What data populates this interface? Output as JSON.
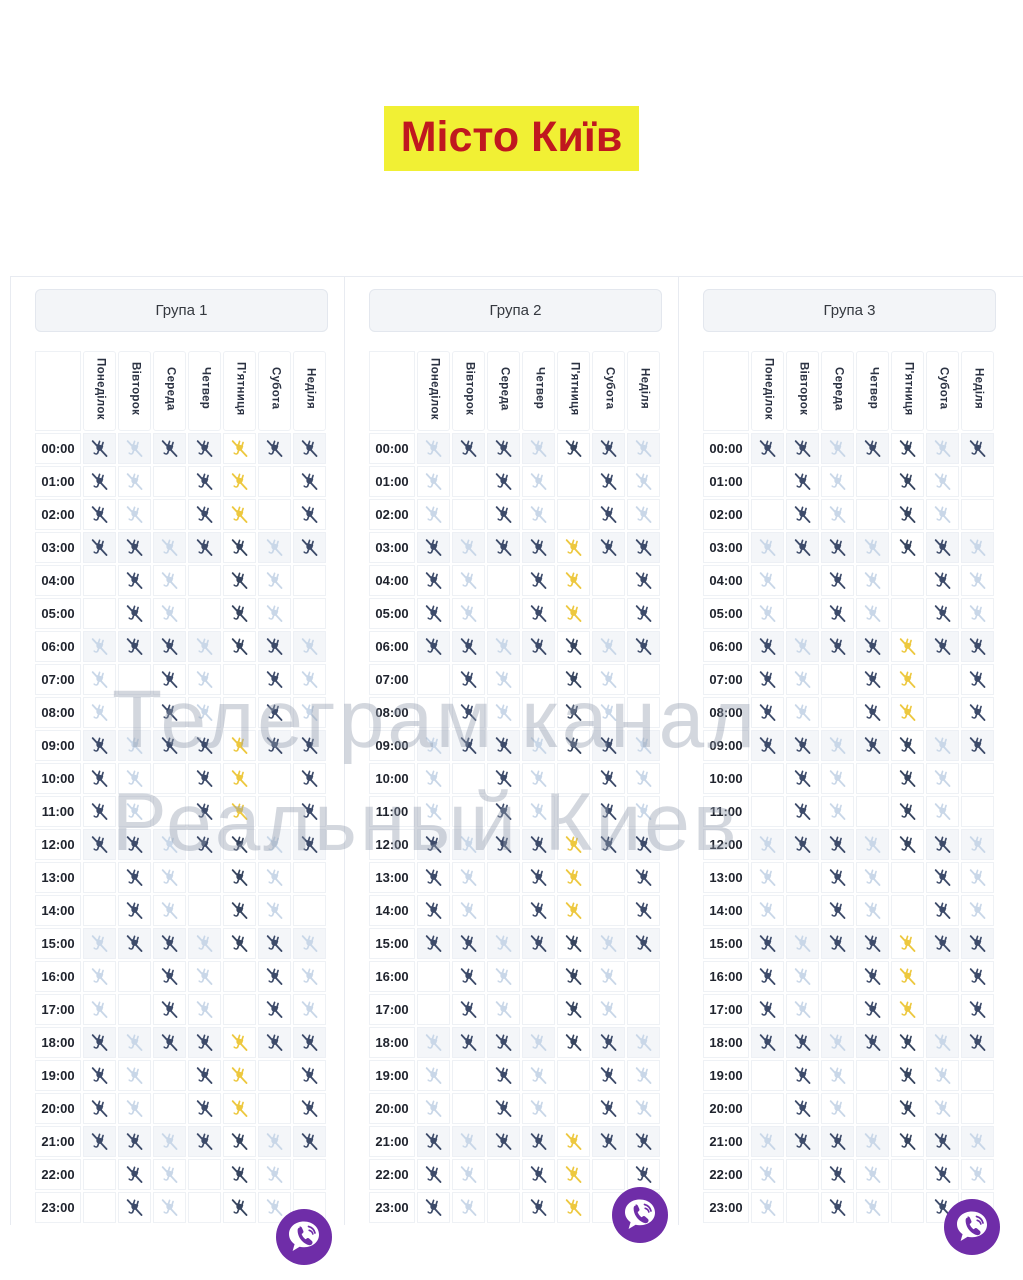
{
  "title": {
    "text": "Місто Київ",
    "bg": "#F1F034",
    "color": "#C0181F"
  },
  "watermark": {
    "line1": "Телеграм канал",
    "line2": "Реальный Киев"
  },
  "days": [
    "Понеділок",
    "Вівторок",
    "Середа",
    "Четвер",
    "П'ятниця",
    "Субота",
    "Неділя"
  ],
  "highlight_day": "П'ятниця",
  "hours": [
    "00:00",
    "01:00",
    "02:00",
    "03:00",
    "04:00",
    "05:00",
    "06:00",
    "07:00",
    "08:00",
    "09:00",
    "10:00",
    "11:00",
    "12:00",
    "13:00",
    "14:00",
    "15:00",
    "16:00",
    "17:00",
    "18:00",
    "19:00",
    "20:00",
    "21:00",
    "22:00",
    "23:00"
  ],
  "cell_state_meaning": {
    "d": "dark power-off icon",
    "l": "light power-off icon",
    "": "empty cell",
    "D": "dark power-off icon on gold friday cell",
    "y": "yellow power-off icon on pale friday cell",
    "p": "pale friday cell, no icon"
  },
  "colors": {
    "gold": "#F3C416",
    "pale_yellow": "#FBF1CE",
    "icon_dark": "#3D4B6A",
    "icon_light": "#C9D7E8",
    "icon_yellow": "#EDC83F",
    "viber_purple": "#6F2DA8",
    "row_tint": "#f4f6f9"
  },
  "icons": {
    "cell": "power-off-icon",
    "badge": "viber-icon"
  },
  "groups": [
    {
      "label": "Група 1",
      "rows": [
        [
          "d",
          "l",
          "d",
          "d",
          "y",
          "d",
          "d"
        ],
        [
          "d",
          "l",
          "",
          "d",
          "y",
          "",
          "d"
        ],
        [
          "d",
          "l",
          "",
          "d",
          "y",
          "",
          "d"
        ],
        [
          "d",
          "d",
          "l",
          "d",
          "D",
          "l",
          "d"
        ],
        [
          "",
          "d",
          "l",
          "",
          "D",
          "l",
          ""
        ],
        [
          "",
          "d",
          "l",
          "",
          "D",
          "l",
          ""
        ],
        [
          "l",
          "d",
          "d",
          "l",
          "D",
          "d",
          "l"
        ],
        [
          "l",
          "",
          "d",
          "l",
          "p",
          "d",
          "l"
        ],
        [
          "l",
          "",
          "d",
          "l",
          "p",
          "d",
          "l"
        ],
        [
          "d",
          "l",
          "d",
          "d",
          "y",
          "d",
          "d"
        ],
        [
          "d",
          "l",
          "",
          "d",
          "y",
          "",
          "d"
        ],
        [
          "d",
          "l",
          "",
          "d",
          "y",
          "",
          "d"
        ],
        [
          "d",
          "d",
          "l",
          "d",
          "D",
          "l",
          "d"
        ],
        [
          "",
          "d",
          "l",
          "",
          "D",
          "l",
          ""
        ],
        [
          "",
          "d",
          "l",
          "",
          "D",
          "l",
          ""
        ],
        [
          "l",
          "d",
          "d",
          "l",
          "D",
          "d",
          "l"
        ],
        [
          "l",
          "",
          "d",
          "l",
          "p",
          "d",
          "l"
        ],
        [
          "l",
          "",
          "d",
          "l",
          "p",
          "d",
          "l"
        ],
        [
          "d",
          "l",
          "d",
          "d",
          "y",
          "d",
          "d"
        ],
        [
          "d",
          "l",
          "",
          "d",
          "y",
          "",
          "d"
        ],
        [
          "d",
          "l",
          "",
          "d",
          "y",
          "",
          "d"
        ],
        [
          "d",
          "d",
          "l",
          "d",
          "D",
          "l",
          "d"
        ],
        [
          "",
          "d",
          "l",
          "",
          "D",
          "l",
          ""
        ],
        [
          "",
          "d",
          "l",
          "",
          "D",
          "l",
          ""
        ]
      ]
    },
    {
      "label": "Група 2",
      "rows": [
        [
          "l",
          "d",
          "d",
          "l",
          "D",
          "d",
          "l"
        ],
        [
          "l",
          "",
          "d",
          "l",
          "p",
          "d",
          "l"
        ],
        [
          "l",
          "",
          "d",
          "l",
          "p",
          "d",
          "l"
        ],
        [
          "d",
          "l",
          "d",
          "d",
          "y",
          "d",
          "d"
        ],
        [
          "d",
          "l",
          "",
          "d",
          "y",
          "",
          "d"
        ],
        [
          "d",
          "l",
          "",
          "d",
          "y",
          "",
          "d"
        ],
        [
          "d",
          "d",
          "l",
          "d",
          "D",
          "l",
          "d"
        ],
        [
          "",
          "d",
          "l",
          "",
          "D",
          "l",
          ""
        ],
        [
          "",
          "d",
          "l",
          "",
          "D",
          "l",
          ""
        ],
        [
          "l",
          "d",
          "d",
          "l",
          "D",
          "d",
          "l"
        ],
        [
          "l",
          "",
          "d",
          "l",
          "p",
          "d",
          "l"
        ],
        [
          "l",
          "",
          "d",
          "l",
          "p",
          "d",
          "l"
        ],
        [
          "d",
          "l",
          "d",
          "d",
          "y",
          "d",
          "d"
        ],
        [
          "d",
          "l",
          "",
          "d",
          "y",
          "",
          "d"
        ],
        [
          "d",
          "l",
          "",
          "d",
          "y",
          "",
          "d"
        ],
        [
          "d",
          "d",
          "l",
          "d",
          "D",
          "l",
          "d"
        ],
        [
          "",
          "d",
          "l",
          "",
          "D",
          "l",
          ""
        ],
        [
          "",
          "d",
          "l",
          "",
          "D",
          "l",
          ""
        ],
        [
          "l",
          "d",
          "d",
          "l",
          "D",
          "d",
          "l"
        ],
        [
          "l",
          "",
          "d",
          "l",
          "p",
          "d",
          "l"
        ],
        [
          "l",
          "",
          "d",
          "l",
          "p",
          "d",
          "l"
        ],
        [
          "d",
          "l",
          "d",
          "d",
          "y",
          "d",
          "d"
        ],
        [
          "d",
          "l",
          "",
          "d",
          "y",
          "",
          "d"
        ],
        [
          "d",
          "l",
          "",
          "d",
          "y",
          "",
          "d"
        ]
      ]
    },
    {
      "label": "Група 3",
      "rows": [
        [
          "d",
          "d",
          "l",
          "d",
          "D",
          "l",
          "d"
        ],
        [
          "",
          "d",
          "l",
          "",
          "D",
          "l",
          ""
        ],
        [
          "",
          "d",
          "l",
          "",
          "D",
          "l",
          ""
        ],
        [
          "l",
          "d",
          "d",
          "l",
          "D",
          "d",
          "l"
        ],
        [
          "l",
          "",
          "d",
          "l",
          "p",
          "d",
          "l"
        ],
        [
          "l",
          "",
          "d",
          "l",
          "p",
          "d",
          "l"
        ],
        [
          "d",
          "l",
          "d",
          "d",
          "y",
          "d",
          "d"
        ],
        [
          "d",
          "l",
          "",
          "d",
          "y",
          "",
          "d"
        ],
        [
          "d",
          "l",
          "",
          "d",
          "y",
          "",
          "d"
        ],
        [
          "d",
          "d",
          "l",
          "d",
          "D",
          "l",
          "d"
        ],
        [
          "",
          "d",
          "l",
          "",
          "D",
          "l",
          ""
        ],
        [
          "",
          "d",
          "l",
          "",
          "D",
          "l",
          ""
        ],
        [
          "l",
          "d",
          "d",
          "l",
          "D",
          "d",
          "l"
        ],
        [
          "l",
          "",
          "d",
          "l",
          "p",
          "d",
          "l"
        ],
        [
          "l",
          "",
          "d",
          "l",
          "p",
          "d",
          "l"
        ],
        [
          "d",
          "l",
          "d",
          "d",
          "y",
          "d",
          "d"
        ],
        [
          "d",
          "l",
          "",
          "d",
          "y",
          "",
          "d"
        ],
        [
          "d",
          "l",
          "",
          "d",
          "y",
          "",
          "d"
        ],
        [
          "d",
          "d",
          "l",
          "d",
          "D",
          "l",
          "d"
        ],
        [
          "",
          "d",
          "l",
          "",
          "D",
          "l",
          ""
        ],
        [
          "",
          "d",
          "l",
          "",
          "D",
          "l",
          ""
        ],
        [
          "l",
          "d",
          "d",
          "l",
          "D",
          "d",
          "l"
        ],
        [
          "l",
          "",
          "d",
          "l",
          "p",
          "d",
          "l"
        ],
        [
          "l",
          "",
          "d",
          "l",
          "p",
          "d",
          "l"
        ]
      ]
    }
  ]
}
